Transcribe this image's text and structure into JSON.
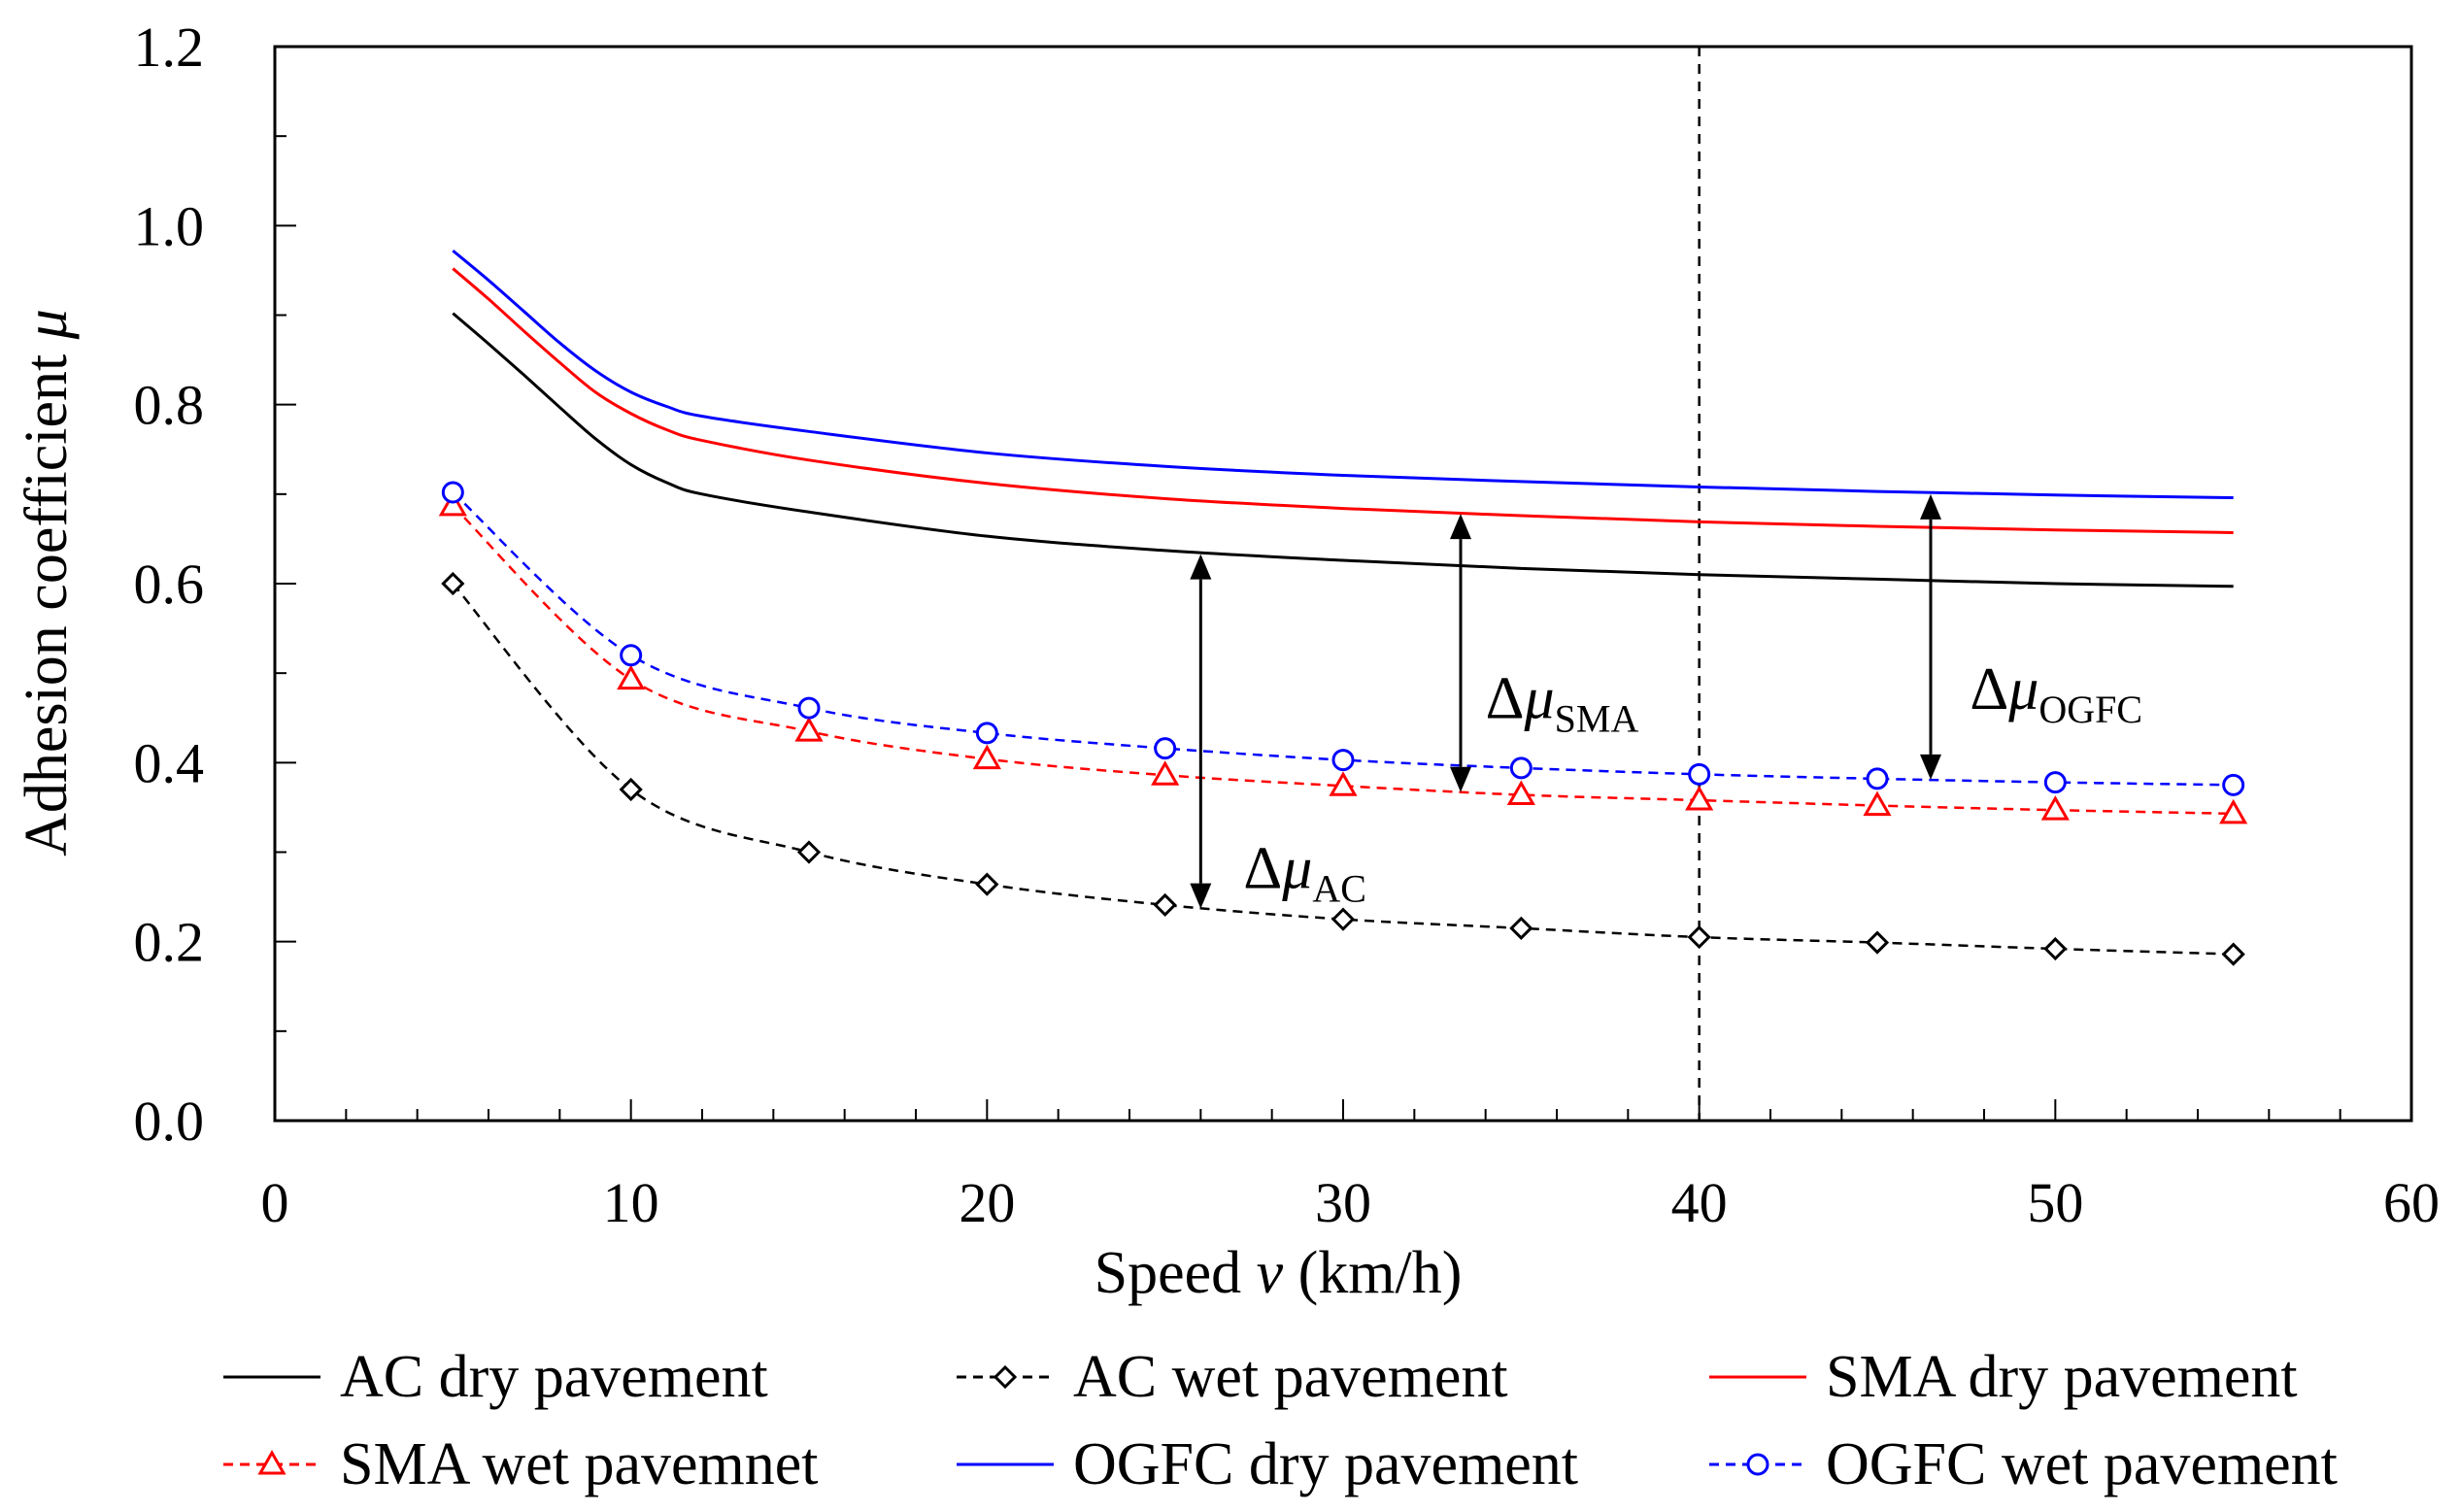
{
  "chart_data": {
    "type": "line",
    "title": "",
    "xlabel": {
      "prefix": "Speed ",
      "var": "v",
      "suffix": " (km/h)"
    },
    "ylabel": {
      "prefix": "Adhesion coefficient ",
      "var": "μ"
    },
    "xlim": [
      0,
      60
    ],
    "ylim": [
      0.0,
      1.2
    ],
    "x_ticks": [
      0,
      10,
      20,
      30,
      40,
      50,
      60
    ],
    "y_ticks": [
      "0.0",
      "0.2",
      "0.4",
      "0.6",
      "0.8",
      "1.0",
      "1.2"
    ],
    "reference_line_x": 40,
    "series": [
      {
        "name": "AC dry pavement",
        "color": "#000000",
        "style": "solid",
        "marker": "none",
        "x": [
          5,
          6,
          7,
          8,
          9,
          10,
          11,
          12,
          15,
          20,
          25,
          30,
          35,
          40,
          45,
          50,
          55
        ],
        "y": [
          0.902,
          0.868,
          0.833,
          0.797,
          0.762,
          0.733,
          0.713,
          0.7,
          0.68,
          0.653,
          0.637,
          0.626,
          0.617,
          0.61,
          0.605,
          0.6,
          0.597
        ]
      },
      {
        "name": "AC wet pavement",
        "color": "#000000",
        "style": "dashed",
        "marker": "diamond",
        "x": [
          5,
          10,
          15,
          20,
          25,
          30,
          35,
          40,
          45,
          50,
          55
        ],
        "y": [
          0.6,
          0.37,
          0.3,
          0.264,
          0.241,
          0.225,
          0.215,
          0.205,
          0.199,
          0.192,
          0.186
        ]
      },
      {
        "name": "SMA dry pavement",
        "color": "#ff0000",
        "style": "solid",
        "marker": "none",
        "x": [
          5,
          6,
          7,
          8,
          9,
          10,
          11,
          12,
          15,
          20,
          25,
          30,
          35,
          40,
          45,
          50,
          55
        ],
        "y": [
          0.952,
          0.918,
          0.882,
          0.847,
          0.814,
          0.79,
          0.772,
          0.76,
          0.738,
          0.712,
          0.695,
          0.684,
          0.676,
          0.669,
          0.664,
          0.66,
          0.657
        ]
      },
      {
        "name": "SMA wet pavemnet",
        "color": "#ff0000",
        "style": "dashed",
        "marker": "triangle",
        "x": [
          5,
          10,
          15,
          20,
          25,
          30,
          35,
          40,
          45,
          50,
          55
        ],
        "y": [
          0.687,
          0.493,
          0.435,
          0.404,
          0.386,
          0.374,
          0.364,
          0.358,
          0.352,
          0.347,
          0.343
        ]
      },
      {
        "name": "OGFC dry pavement",
        "color": "#0000ff",
        "style": "solid",
        "marker": "none",
        "x": [
          5,
          6,
          7,
          8,
          9,
          10,
          11,
          12,
          15,
          20,
          25,
          30,
          35,
          40,
          45,
          50,
          55
        ],
        "y": [
          0.972,
          0.939,
          0.904,
          0.869,
          0.838,
          0.814,
          0.798,
          0.787,
          0.77,
          0.746,
          0.731,
          0.721,
          0.714,
          0.708,
          0.703,
          0.699,
          0.696
        ]
      },
      {
        "name": "OGFC wet pavement",
        "color": "#0000ff",
        "style": "dashed",
        "marker": "circle",
        "x": [
          5,
          10,
          15,
          20,
          25,
          30,
          35,
          40,
          45,
          50,
          55
        ],
        "y": [
          0.702,
          0.52,
          0.461,
          0.433,
          0.416,
          0.403,
          0.394,
          0.387,
          0.382,
          0.378,
          0.375
        ]
      }
    ],
    "annotations": [
      {
        "name": "delta-mu-ac",
        "symbol": "Δ",
        "var": "μ",
        "sub": "AC",
        "arrow_x": 26.0,
        "y_from": 0.633,
        "y_to": 0.237,
        "label_x": 27.2,
        "label_y": 0.26
      },
      {
        "name": "delta-mu-sma",
        "symbol": "Δ",
        "var": "μ",
        "sub": "SMA",
        "arrow_x": 33.3,
        "y_from": 0.678,
        "y_to": 0.367,
        "label_x": 34.0,
        "label_y": 0.45
      },
      {
        "name": "delta-mu-ogfc",
        "symbol": "Δ",
        "var": "μ",
        "sub": "OGFC",
        "arrow_x": 46.5,
        "y_from": 0.7,
        "y_to": 0.381,
        "label_x": 47.6,
        "label_y": 0.46
      }
    ]
  }
}
